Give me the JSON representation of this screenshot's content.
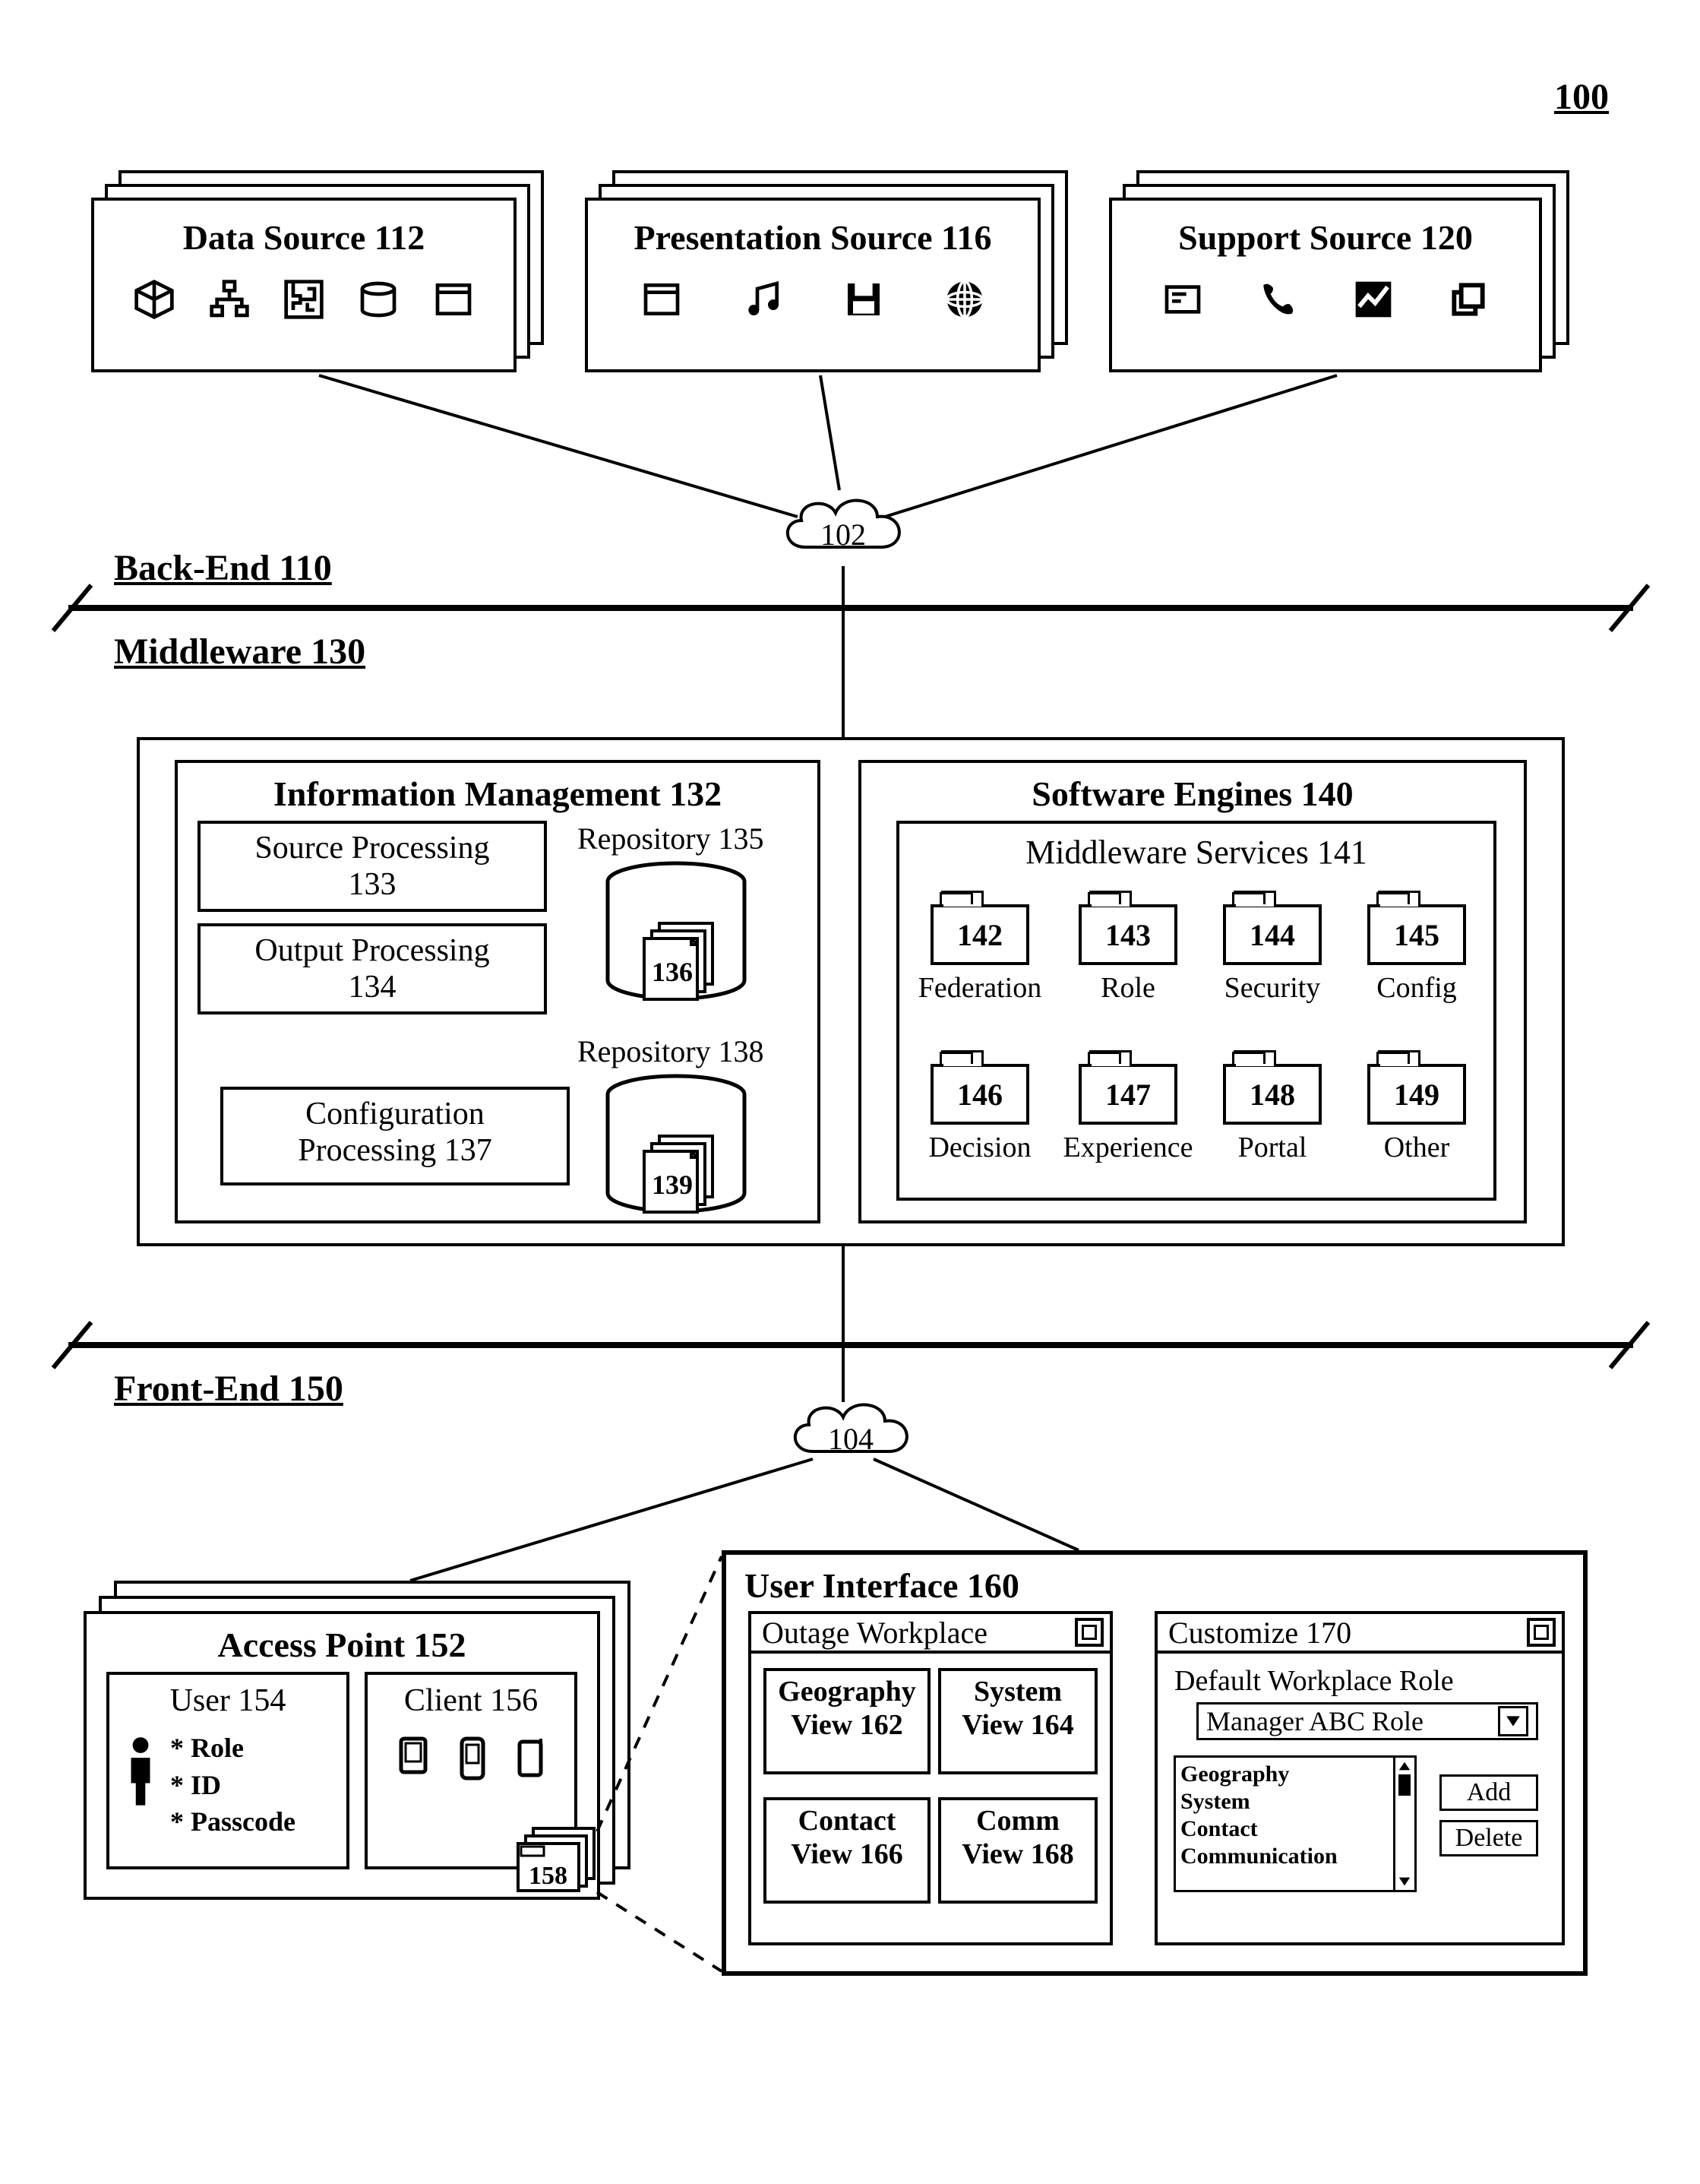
{
  "figure_number": "100",
  "backend": {
    "label": "Back-End 110",
    "cloud": "102",
    "sources": {
      "data": "Data Source 112",
      "presentation": "Presentation Source 116",
      "support": "Support Source 120"
    }
  },
  "middleware": {
    "label": "Middleware 130",
    "info_mgmt": {
      "title": "Information Management 132",
      "source_proc": "Source Processing 133",
      "output_proc": "Output Processing 134",
      "config_proc": "Configuration Processing 137",
      "repo135_label": "Repository 135",
      "repo135_doc": "136",
      "repo138_label": "Repository 138",
      "repo138_doc": "139"
    },
    "engines": {
      "title": "Software Engines 140",
      "services_title": "Middleware Services 141",
      "svc": [
        {
          "num": "142",
          "label": "Federation"
        },
        {
          "num": "143",
          "label": "Role"
        },
        {
          "num": "144",
          "label": "Security"
        },
        {
          "num": "145",
          "label": "Config"
        },
        {
          "num": "146",
          "label": "Decision"
        },
        {
          "num": "147",
          "label": "Experience"
        },
        {
          "num": "148",
          "label": "Portal"
        },
        {
          "num": "149",
          "label": "Other"
        }
      ]
    }
  },
  "frontend": {
    "label": "Front-End 150",
    "cloud": "104",
    "access": {
      "title": "Access Point 152",
      "user": {
        "title": "User 154",
        "role": "* Role",
        "id": "* ID",
        "passcode": "* Passcode"
      },
      "client": {
        "title": "Client 156",
        "num": "158"
      }
    },
    "ui": {
      "title": "User Interface 160",
      "outage_title": "Outage Workplace",
      "views": {
        "geo": "Geography View 162",
        "sys": "System View 164",
        "contact": "Contact View 166",
        "comm": "Comm View 168"
      },
      "customize": {
        "title": "Customize 170",
        "default_label": "Default Workplace Role",
        "dropdown": "Manager ABC Role",
        "list": [
          "Geography",
          "System",
          "Contact",
          "Communication"
        ],
        "add": "Add",
        "delete": "Delete"
      }
    }
  },
  "colors": {
    "stroke": "#000",
    "bg": "#fff"
  }
}
